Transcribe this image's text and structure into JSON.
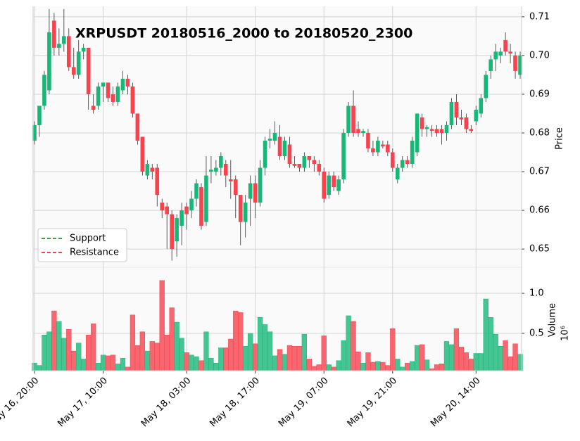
{
  "chart_data": {
    "type": "candlestick",
    "title": "XRPUSDT 20180516_2000 to 20180520_2300",
    "categories": [
      "May 16, 20:00",
      null,
      null,
      null,
      null,
      null,
      null,
      null,
      null,
      null,
      null,
      null,
      null,
      null,
      "May 17, 10:00",
      null,
      null,
      null,
      null,
      null,
      null,
      null,
      null,
      null,
      null,
      null,
      null,
      null,
      null,
      null,
      null,
      "May 18, 03:00",
      null,
      null,
      null,
      null,
      null,
      null,
      null,
      null,
      null,
      null,
      null,
      null,
      null,
      "May 18, 17:00",
      null,
      null,
      null,
      null,
      null,
      null,
      null,
      null,
      null,
      null,
      null,
      null,
      null,
      "May 19, 07:00",
      null,
      null,
      null,
      null,
      null,
      null,
      null,
      null,
      null,
      null,
      null,
      null,
      null,
      "May 19, 21:00",
      null,
      null,
      null,
      null,
      null,
      null,
      null,
      null,
      null,
      null,
      null,
      null,
      null,
      null,
      null,
      null,
      "May 20, 14:00",
      null,
      null,
      null,
      null,
      null,
      null,
      null,
      null,
      null
    ],
    "open": [
      0.678,
      0.682,
      0.687,
      0.691,
      0.709,
      0.702,
      0.703,
      0.705,
      0.697,
      0.695,
      0.701,
      0.702,
      0.687,
      0.687,
      0.692,
      0.693,
      0.69,
      0.688,
      0.691,
      0.694,
      0.692,
      0.685,
      0.679,
      0.669,
      0.671,
      0.671,
      0.662,
      0.661,
      0.659,
      0.652,
      0.656,
      0.661,
      0.66,
      0.663,
      0.666,
      0.657,
      0.67,
      0.67,
      0.671,
      0.672,
      0.668,
      0.668,
      0.664,
      0.657,
      0.663,
      0.667,
      0.662,
      0.671,
      0.678,
      0.678,
      0.679,
      0.674,
      0.677,
      0.672,
      0.672,
      0.671,
      0.674,
      0.673,
      0.672,
      0.67,
      0.664,
      0.669,
      0.665,
      0.668,
      0.68,
      0.687,
      0.681,
      0.68,
      0.68,
      0.676,
      0.675,
      0.677,
      0.677,
      0.675,
      0.668,
      0.671,
      0.673,
      0.672,
      0.675,
      0.684,
      0.681,
      0.681,
      0.681,
      0.681,
      0.68,
      0.682,
      0.688,
      0.684,
      0.684,
      0.681,
      0.683,
      0.685,
      0.689,
      0.696,
      0.699,
      0.7,
      0.704,
      0.701,
      0.7,
      0.695
    ],
    "high": [
      0.683,
      0.687,
      0.696,
      0.712,
      0.711,
      0.707,
      0.712,
      0.707,
      0.702,
      0.704,
      0.703,
      0.702,
      0.69,
      0.693,
      0.693,
      0.693,
      0.692,
      0.693,
      0.696,
      0.695,
      0.693,
      0.685,
      0.679,
      0.673,
      0.672,
      0.672,
      0.663,
      0.662,
      0.66,
      0.659,
      0.662,
      0.662,
      0.665,
      0.668,
      0.667,
      0.674,
      0.674,
      0.673,
      0.675,
      0.673,
      0.673,
      0.669,
      0.664,
      0.664,
      0.669,
      0.669,
      0.673,
      0.679,
      0.681,
      0.683,
      0.682,
      0.679,
      0.679,
      0.674,
      0.672,
      0.675,
      0.674,
      0.674,
      0.673,
      0.671,
      0.67,
      0.67,
      0.669,
      0.681,
      0.688,
      0.691,
      0.683,
      0.681,
      0.681,
      0.678,
      0.679,
      0.678,
      0.678,
      0.676,
      0.672,
      0.674,
      0.674,
      0.679,
      0.685,
      0.685,
      0.682,
      0.682,
      0.682,
      0.682,
      0.683,
      0.689,
      0.69,
      0.686,
      0.685,
      0.682,
      0.687,
      0.69,
      0.696,
      0.7,
      0.703,
      0.702,
      0.706,
      0.703,
      0.701,
      0.701
    ],
    "low": [
      0.677,
      0.679,
      0.686,
      0.69,
      0.7,
      0.7,
      0.701,
      0.696,
      0.694,
      0.694,
      0.699,
      0.686,
      0.685,
      0.686,
      0.688,
      0.688,
      0.687,
      0.687,
      0.69,
      0.69,
      0.684,
      0.677,
      0.669,
      0.668,
      0.668,
      0.661,
      0.658,
      0.65,
      0.647,
      0.648,
      0.651,
      0.655,
      0.658,
      0.661,
      0.655,
      0.656,
      0.667,
      0.669,
      0.669,
      0.666,
      0.663,
      0.658,
      0.651,
      0.653,
      0.656,
      0.658,
      0.661,
      0.669,
      0.676,
      0.677,
      0.673,
      0.673,
      0.671,
      0.671,
      0.67,
      0.67,
      0.671,
      0.67,
      0.669,
      0.662,
      0.663,
      0.665,
      0.664,
      0.667,
      0.679,
      0.679,
      0.679,
      0.679,
      0.675,
      0.674,
      0.674,
      0.676,
      0.674,
      0.67,
      0.667,
      0.67,
      0.671,
      0.671,
      0.674,
      0.679,
      0.679,
      0.679,
      0.679,
      0.677,
      0.678,
      0.681,
      0.682,
      0.682,
      0.68,
      0.68,
      0.682,
      0.684,
      0.688,
      0.694,
      0.696,
      0.698,
      0.7,
      0.698,
      0.694,
      0.694
    ],
    "close": [
      0.682,
      0.687,
      0.695,
      0.706,
      0.702,
      0.703,
      0.705,
      0.697,
      0.695,
      0.701,
      0.702,
      0.69,
      0.686,
      0.692,
      0.693,
      0.689,
      0.688,
      0.692,
      0.694,
      0.692,
      0.685,
      0.678,
      0.67,
      0.672,
      0.67,
      0.664,
      0.66,
      0.659,
      0.65,
      0.658,
      0.66,
      0.659,
      0.663,
      0.667,
      0.656,
      0.669,
      0.6705,
      0.671,
      0.674,
      0.669,
      0.6675,
      0.664,
      0.657,
      0.662,
      0.667,
      0.662,
      0.671,
      0.678,
      0.6785,
      0.68,
      0.674,
      0.678,
      0.672,
      0.6715,
      0.671,
      0.674,
      0.673,
      0.672,
      0.67,
      0.663,
      0.669,
      0.666,
      0.668,
      0.68,
      0.687,
      0.68,
      0.68,
      0.6805,
      0.676,
      0.675,
      0.678,
      0.6765,
      0.675,
      0.671,
      0.671,
      0.673,
      0.672,
      0.678,
      0.685,
      0.681,
      0.6815,
      0.6805,
      0.68,
      0.68,
      0.682,
      0.688,
      0.684,
      0.6835,
      0.681,
      0.6805,
      0.686,
      0.689,
      0.695,
      0.699,
      0.701,
      0.701,
      0.701,
      0.7005,
      0.696,
      0.7
    ],
    "volume": [
      0.13,
      0.1,
      0.48,
      0.52,
      0.78,
      0.65,
      0.44,
      0.55,
      0.28,
      0.38,
      0.18,
      0.48,
      0.62,
      0.13,
      0.23,
      0.22,
      0.23,
      0.12,
      0.19,
      0.08,
      0.73,
      0.35,
      0.52,
      0.28,
      0.4,
      0.38,
      1.16,
      0.48,
      0.82,
      0.64,
      0.44,
      0.26,
      0.23,
      0.21,
      0.16,
      0.52,
      0.19,
      0.13,
      0.32,
      0.32,
      0.43,
      0.78,
      0.76,
      0.34,
      0.5,
      0.37,
      0.7,
      0.61,
      0.52,
      0.22,
      0.3,
      0.24,
      0.35,
      0.34,
      0.34,
      0.49,
      0.18,
      0.09,
      0.11,
      0.47,
      0.11,
      0.08,
      0.16,
      0.41,
      0.72,
      0.65,
      0.27,
      0.13,
      0.26,
      0.14,
      0.15,
      0.14,
      0.1,
      0.56,
      0.18,
      0.08,
      0.13,
      0.15,
      0.35,
      0.36,
      0.17,
      0.06,
      0.11,
      0.12,
      0.4,
      0.36,
      0.56,
      0.33,
      0.26,
      0.18,
      0.25,
      0.25,
      0.93,
      0.7,
      0.49,
      0.34,
      0.41,
      0.21,
      0.37,
      0.24
    ],
    "up_color": "#17b877",
    "down_color": "#f8424d",
    "ylim": [
      0.6453,
      0.7127
    ],
    "yticks": [
      0.65,
      0.66,
      0.67,
      0.68,
      0.69,
      {
        "value": 0.7,
        "label": "0.70"
      },
      0.71
    ],
    "y_label": "Price",
    "volume_ylim": [
      0.035,
      1.325
    ],
    "volume_yticks": [
      0.5,
      {
        "value": 1,
        "label": "1.0"
      }
    ],
    "volume_label": "Volume",
    "volume_unit": "10⁶",
    "series": [
      {
        "name": "Support",
        "color": "#008000"
      },
      {
        "name": "Resistance",
        "color": "#ff0000"
      }
    ],
    "grid": true
  }
}
